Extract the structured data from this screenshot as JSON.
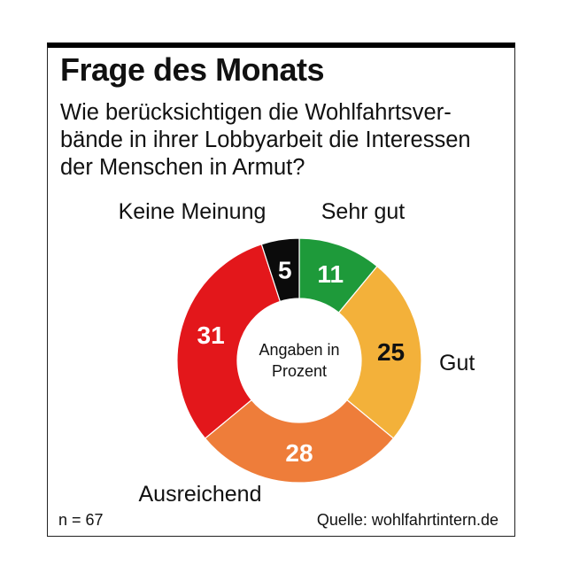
{
  "header": {
    "title": "Frage des Monats",
    "question": "Wie berücksichtigen die Wohlfahrtsver-bände in ihrer Lobbyarbeit die Interessen der Menschen in Armut?"
  },
  "chart_data": {
    "type": "pie",
    "center_label": [
      "Angaben in",
      "Prozent"
    ],
    "slices": [
      {
        "label": "Sehr gut",
        "value": 11,
        "color": "#1e9a3a"
      },
      {
        "label": "Gut",
        "value": 25,
        "color": "#f3b13a"
      },
      {
        "label": "Ausreichend",
        "value": 28,
        "color": "#ee7d3a"
      },
      {
        "label": "",
        "value": 31,
        "color": "#e3171b"
      },
      {
        "label": "Keine Meinung",
        "value": 5,
        "color": "#0b0b0b"
      }
    ],
    "value_text_colors": [
      "#ffffff",
      "#111111",
      "#ffffff",
      "#ffffff",
      "#ffffff"
    ]
  },
  "footer": {
    "sample": "n = 67",
    "source": "Quelle: wohlfahrtintern.de"
  }
}
